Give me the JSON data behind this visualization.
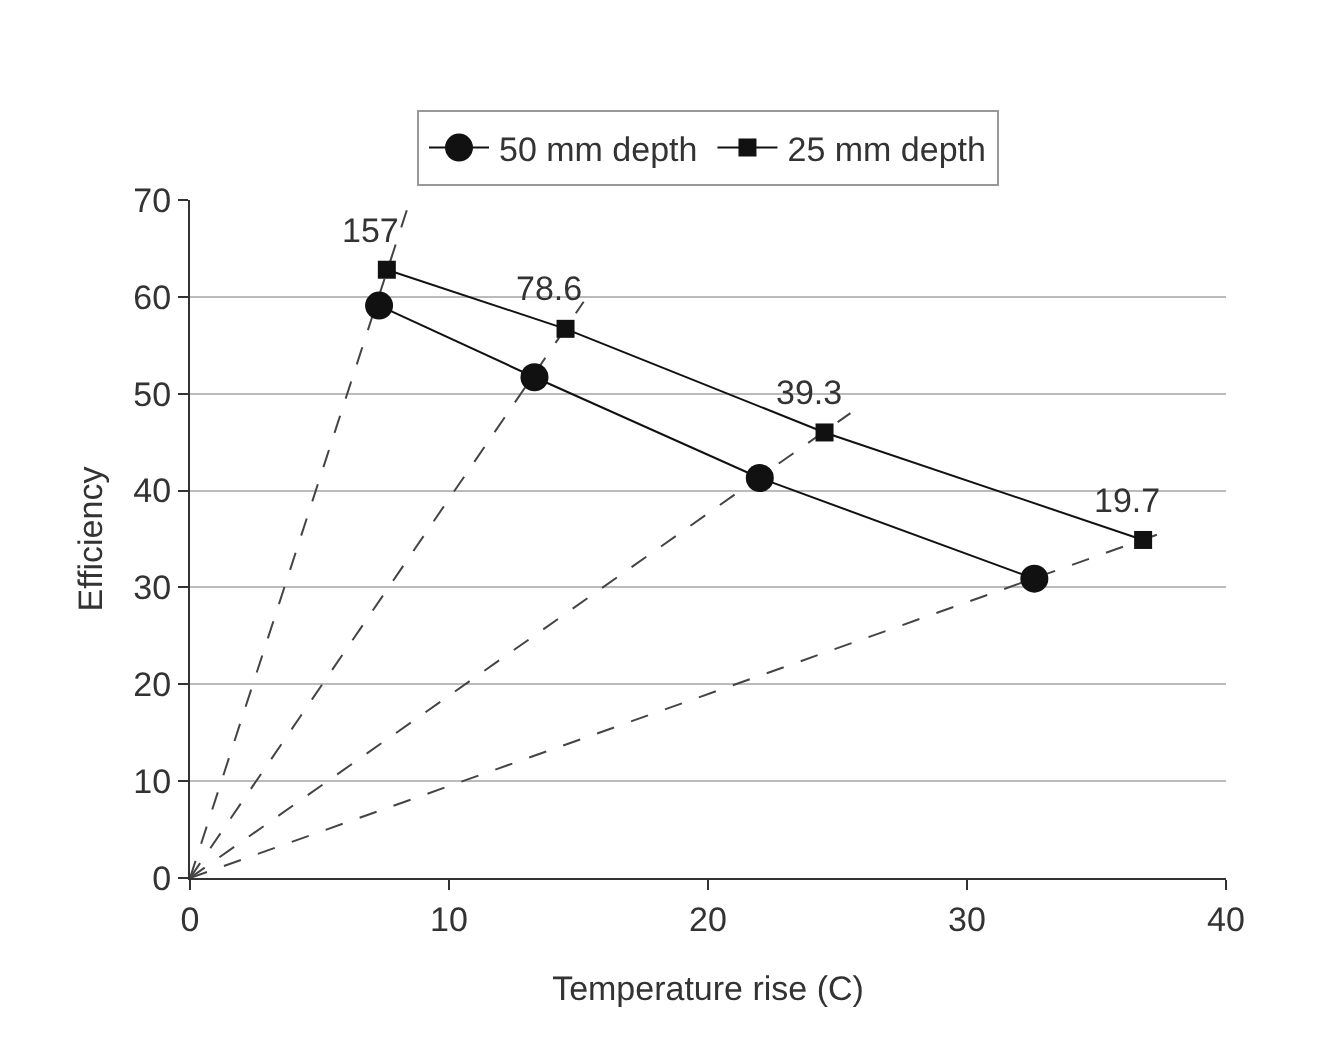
{
  "chart_data": {
    "type": "line",
    "xlabel": "Temperature rise (C)",
    "ylabel": "Efficiency",
    "xlim": [
      0,
      40
    ],
    "xticks": [
      0,
      10,
      20,
      30,
      40
    ],
    "ylim": [
      0,
      70
    ],
    "yticks": [
      0,
      10,
      20,
      30,
      40,
      50,
      60,
      70
    ],
    "grid": "y",
    "legend": "top",
    "series": [
      {
        "name": "50 mm depth",
        "color": "#111111",
        "marker": "circle",
        "line_style": "solid",
        "x": [
          7.3,
          13.3,
          22,
          32.6
        ],
        "values": [
          59.1,
          51.7,
          41.3,
          30.9
        ]
      },
      {
        "name": "25 mm depth",
        "color": "#111111",
        "marker": "square",
        "line_style": "solid",
        "x": [
          7.6,
          14.5,
          24.5,
          36.8
        ],
        "values": [
          62.8,
          56.7,
          46,
          34.9
        ]
      },
      {
        "color": "#444444",
        "marker": "none",
        "line_style": "dashed",
        "x": [
          0,
          8.5
        ],
        "values": [
          0,
          70
        ]
      },
      {
        "color": "#444444",
        "marker": "none",
        "line_style": "dashed",
        "x": [
          0,
          15.2
        ],
        "values": [
          0,
          59.5
        ]
      },
      {
        "color": "#444444",
        "marker": "none",
        "line_style": "dashed",
        "x": [
          0,
          25.5
        ],
        "values": [
          0,
          48
        ]
      },
      {
        "color": "#444444",
        "marker": "none",
        "line_style": "dashed",
        "x": [
          0,
          37.5
        ],
        "values": [
          0,
          35.6
        ]
      }
    ],
    "annotations": [
      {
        "text": "157",
        "x": 7.6,
        "y": 62.8
      },
      {
        "text": "78.6",
        "x": 14.5,
        "y": 56.7
      },
      {
        "text": "39.3",
        "x": 24.5,
        "y": 46
      },
      {
        "text": "19.7",
        "x": 36.8,
        "y": 34.9
      }
    ]
  }
}
